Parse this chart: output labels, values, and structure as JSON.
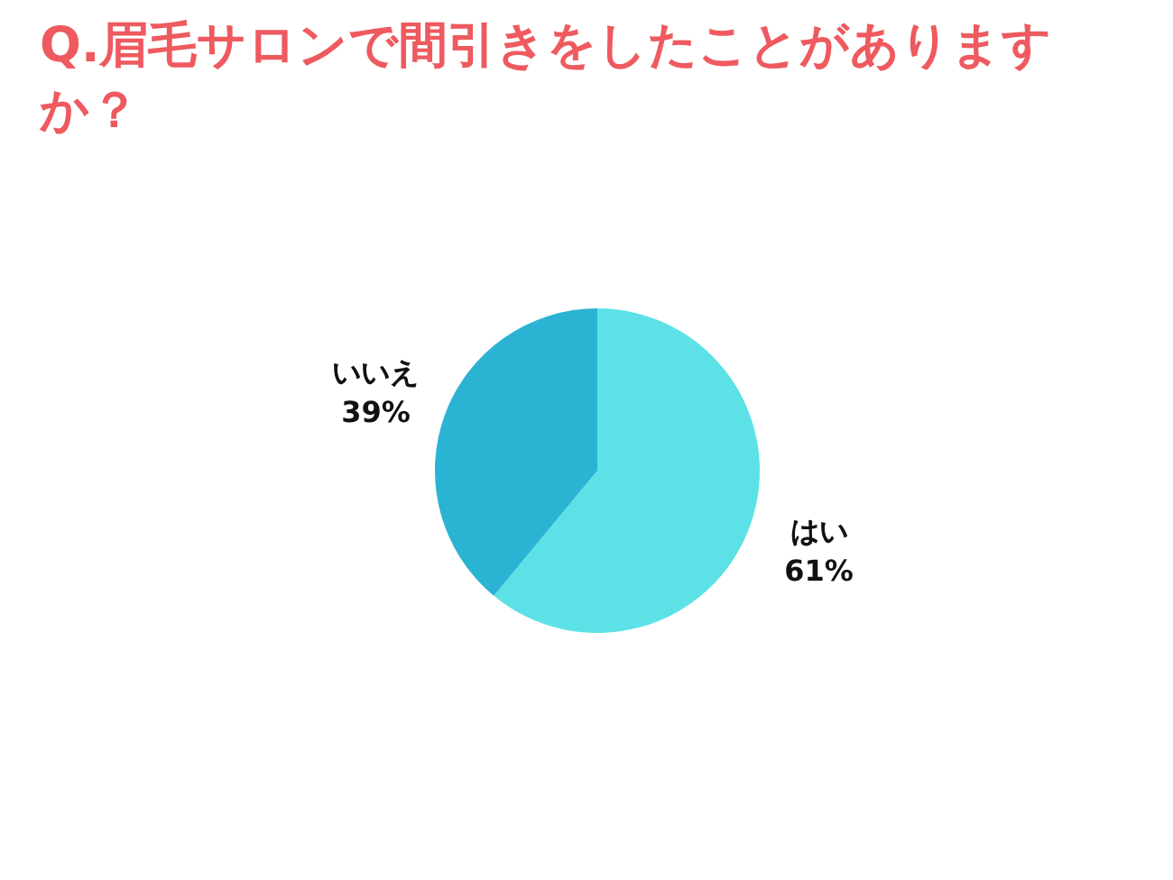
{
  "chart_data": {
    "type": "pie",
    "title": "Q.眉毛サロンで間引きをしたことがありますか？",
    "categories": [
      "はい",
      "いいえ"
    ],
    "values": [
      61,
      39
    ],
    "colors": [
      "#5ce1e6",
      "#2bb3d4"
    ],
    "value_labels": [
      "61%",
      "39%"
    ]
  }
}
